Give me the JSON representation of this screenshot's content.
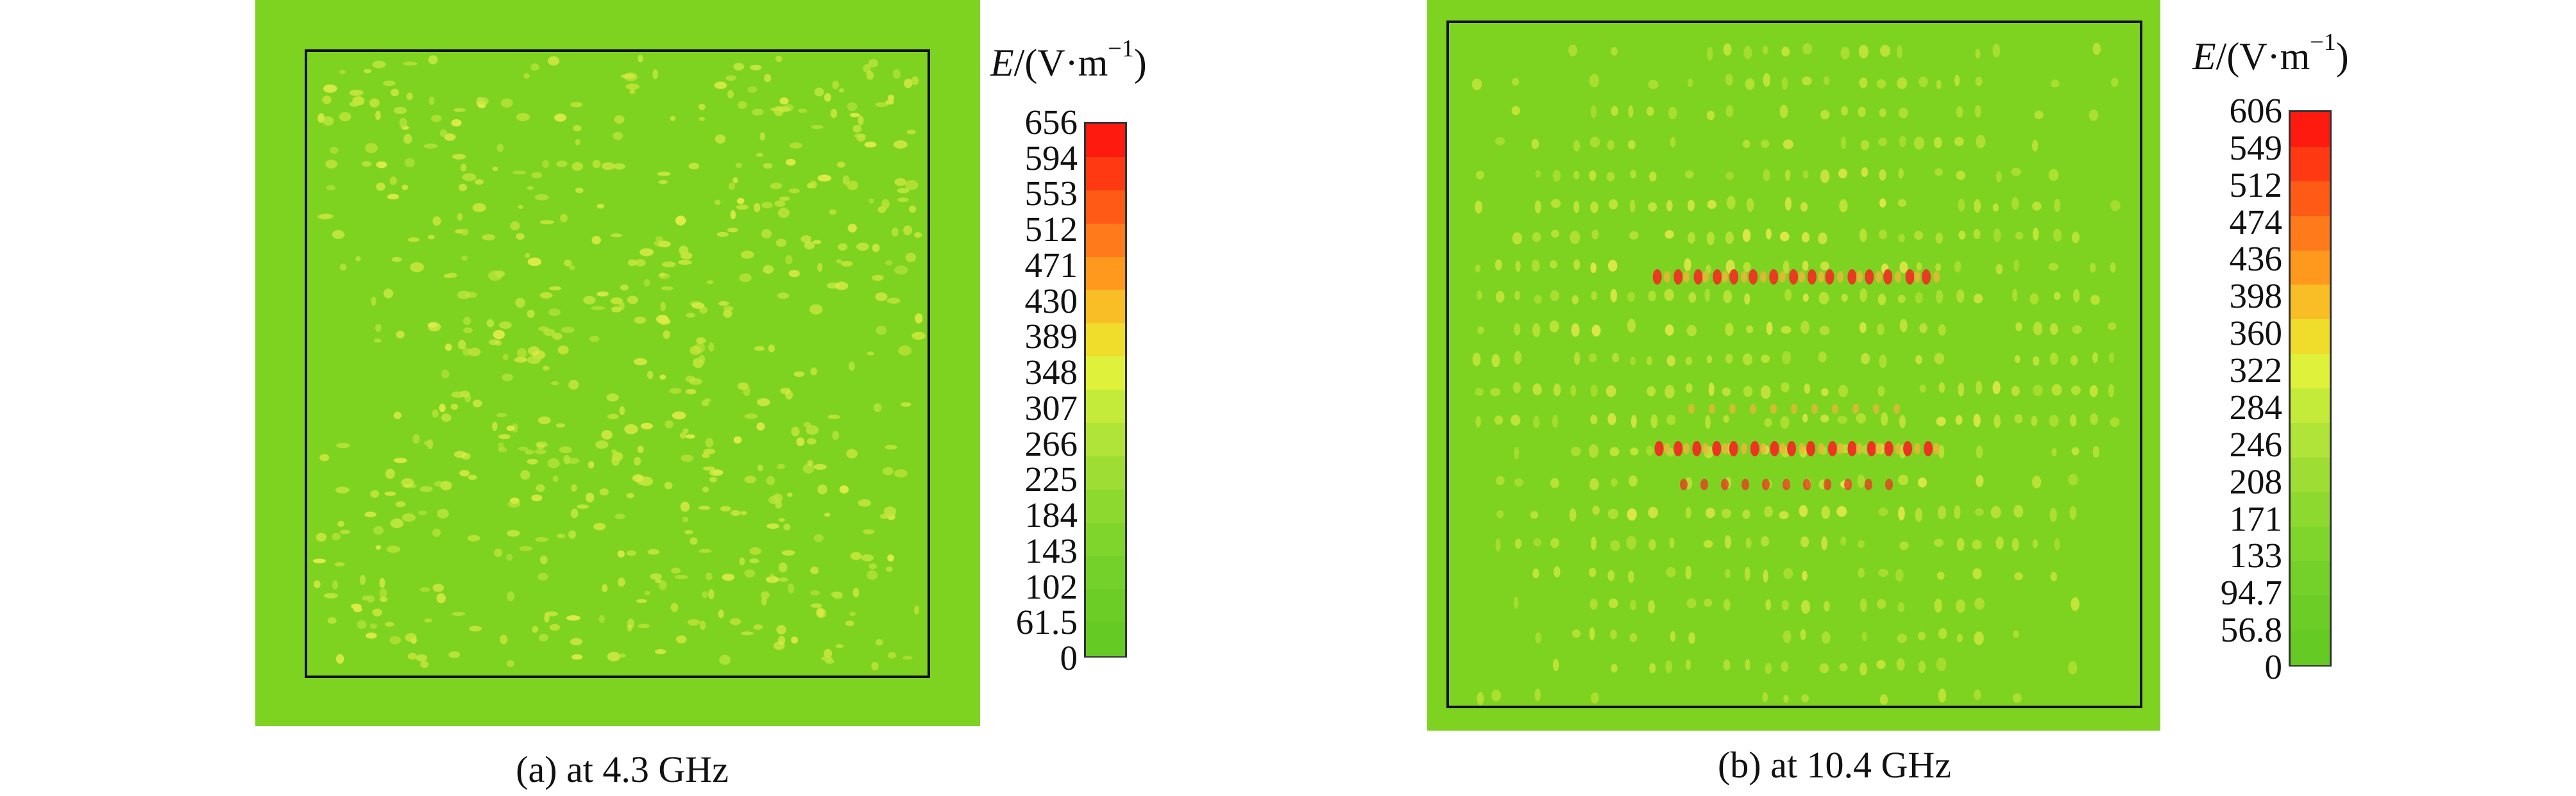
{
  "panels": [
    {
      "id": "a",
      "caption": "(a) at 4.3 GHz",
      "unit_prefix": "E",
      "unit_rest": "/(V·m",
      "unit_sup": "−1",
      "unit_close": ")",
      "ticks": [
        "656",
        "594",
        "553",
        "512",
        "471",
        "430",
        "389",
        "348",
        "307",
        "266",
        "225",
        "184",
        "143",
        "102",
        "61.5",
        "0"
      ],
      "base_color": "#7ed321",
      "hotspot_colors": [
        "#c8e63a",
        "#e3ec4a",
        "#bfe63f"
      ]
    },
    {
      "id": "b",
      "caption": "(b) at 10.4 GHz",
      "unit_prefix": "E",
      "unit_rest": "/(V·m",
      "unit_sup": "−1",
      "unit_close": ")",
      "ticks": [
        "606",
        "549",
        "512",
        "474",
        "436",
        "398",
        "360",
        "322",
        "284",
        "246",
        "208",
        "171",
        "133",
        "94.7",
        "56.8",
        "0"
      ],
      "base_color": "#7ed321",
      "hotspot_colors": [
        "#c8e63a",
        "#e7e94c",
        "#f2b43a",
        "#ee3322"
      ]
    }
  ],
  "colorbar_colors": [
    "#ff1a0f",
    "#ff3a12",
    "#ff5a16",
    "#ff7a1a",
    "#ff991e",
    "#f9bd25",
    "#efdc2b",
    "#dff13a",
    "#c4ea3a",
    "#b0e438",
    "#9ede34",
    "#8dd930",
    "#7fd52c",
    "#74d129",
    "#6ccd26",
    "#66ca24"
  ]
}
